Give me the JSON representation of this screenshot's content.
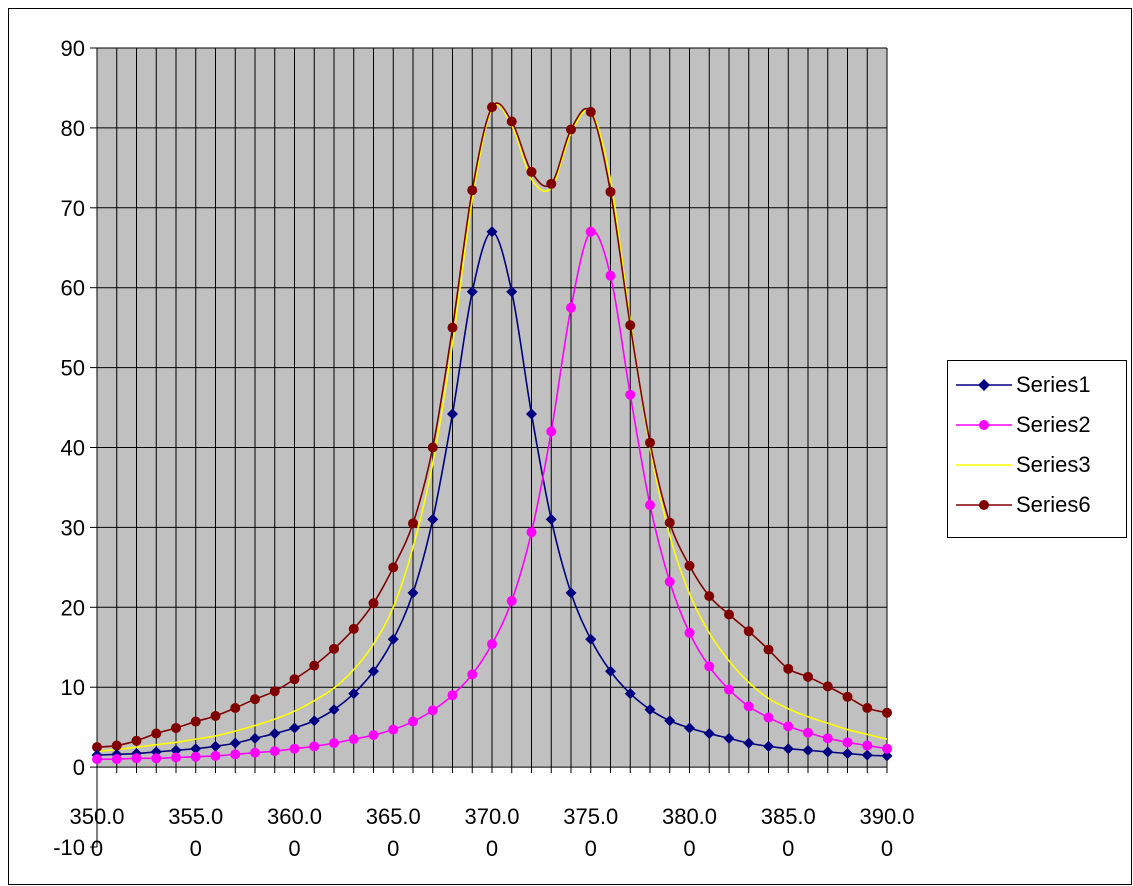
{
  "chart_data": {
    "type": "line",
    "xlim": [
      350,
      390
    ],
    "ylim": [
      -10,
      90
    ],
    "y_ticks": [
      90,
      80,
      70,
      60,
      50,
      40,
      30,
      20,
      10,
      0,
      -10
    ],
    "x_ticks": [
      350,
      355,
      360,
      365,
      370,
      375,
      380,
      385,
      390
    ],
    "x_tick_top": [
      "350.0",
      "355.0",
      "360.0",
      "365.0",
      "370.0",
      "375.0",
      "380.0",
      "385.0",
      "390.0"
    ],
    "x_tick_bottom": [
      "0",
      "0",
      "0",
      "0",
      "0",
      "0",
      "0",
      "0",
      "0"
    ],
    "plot_background": "#c0c0c0",
    "grid": true,
    "legend_position": "right",
    "x": [
      350,
      351,
      352,
      353,
      354,
      355,
      356,
      357,
      358,
      359,
      360,
      361,
      362,
      363,
      364,
      365,
      366,
      367,
      368,
      369,
      370,
      371,
      372,
      373,
      374,
      375,
      376,
      377,
      378,
      379,
      380,
      381,
      382,
      383,
      384,
      385,
      386,
      387,
      388,
      389,
      390
    ],
    "series": [
      {
        "name": "Series1",
        "color": "#000080",
        "marker": "diamond",
        "values": [
          1.5,
          1.6,
          1.7,
          1.9,
          2.1,
          2.3,
          2.6,
          3.0,
          3.6,
          4.2,
          4.9,
          5.8,
          7.2,
          9.2,
          12.0,
          16.0,
          21.8,
          31.0,
          44.2,
          59.5,
          67.0,
          59.5,
          44.2,
          31.0,
          21.8,
          16.0,
          12.0,
          9.2,
          7.2,
          5.8,
          4.9,
          4.2,
          3.6,
          3.0,
          2.6,
          2.3,
          2.1,
          1.9,
          1.7,
          1.5,
          1.4
        ]
      },
      {
        "name": "Series2",
        "color": "#ff00ff",
        "marker": "circle",
        "values": [
          1.0,
          1.0,
          1.1,
          1.1,
          1.2,
          1.3,
          1.4,
          1.6,
          1.8,
          2.0,
          2.3,
          2.6,
          3.0,
          3.5,
          4.0,
          4.7,
          5.7,
          7.1,
          9.0,
          11.6,
          15.4,
          20.8,
          29.4,
          42.0,
          57.5,
          67.0,
          61.5,
          46.6,
          32.8,
          23.2,
          16.8,
          12.6,
          9.7,
          7.6,
          6.2,
          5.1,
          4.3,
          3.6,
          3.1,
          2.7,
          2.3
        ]
      },
      {
        "name": "Series3",
        "color": "#ffff00",
        "marker": "none",
        "values": [
          2.0,
          2.2,
          2.5,
          2.8,
          3.1,
          3.5,
          3.9,
          4.5,
          5.2,
          6.0,
          7.0,
          8.3,
          9.9,
          12.2,
          15.4,
          20.0,
          27.5,
          38.0,
          53.0,
          71.0,
          82.4,
          80.3,
          73.6,
          72.5,
          79.3,
          82.0,
          73.5,
          55.8,
          40.0,
          29.0,
          21.7,
          16.8,
          13.3,
          10.6,
          8.6,
          7.3,
          6.3,
          5.5,
          4.7,
          4.1,
          3.5
        ]
      },
      {
        "name": "Series6",
        "color": "#800000",
        "marker": "circle",
        "values": [
          2.5,
          2.7,
          3.3,
          4.2,
          4.9,
          5.7,
          6.4,
          7.4,
          8.5,
          9.5,
          11.0,
          12.7,
          14.8,
          17.3,
          20.5,
          25.0,
          30.5,
          40.0,
          55.0,
          72.2,
          82.6,
          80.8,
          74.5,
          73.0,
          79.8,
          82.0,
          72.0,
          55.3,
          40.6,
          30.6,
          25.2,
          21.4,
          19.1,
          17.0,
          14.7,
          12.3,
          11.3,
          10.1,
          8.8,
          7.4,
          6.8
        ]
      }
    ]
  }
}
